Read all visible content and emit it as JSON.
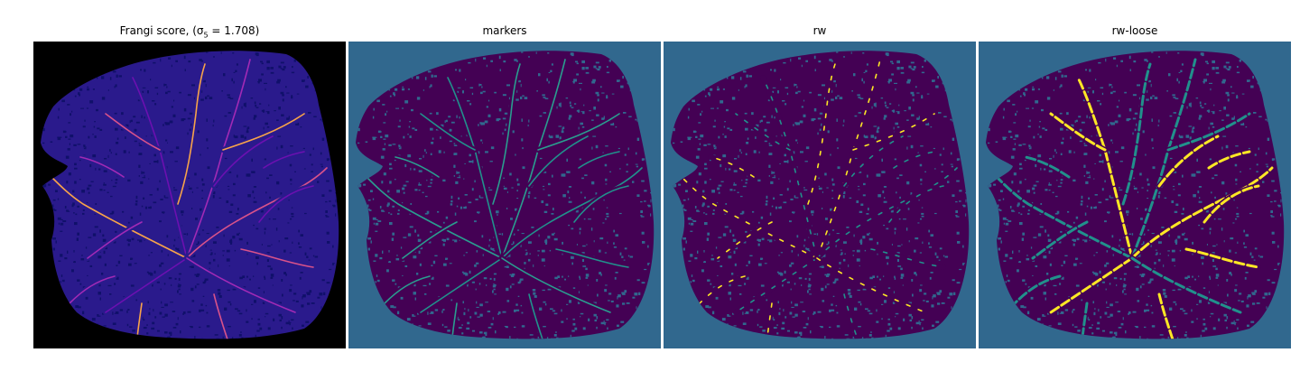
{
  "panels": [
    {
      "title": "Frangi score, (σ",
      "title_sub": "5",
      "title_tail": " = 1.708)",
      "background": "#000000",
      "tissue_fill": "#2a1a8c",
      "tissue_texture": "#10106a",
      "vessel_colors": [
        "#6b10b0",
        "#a12ab5",
        "#d8528a",
        "#f7a34a"
      ]
    },
    {
      "title": "markers",
      "background": "#31688e",
      "tissue_fill": "#440154",
      "tissue_texture": "#31688e",
      "vessel_colors": [
        "#21918c",
        "#2a9d8f"
      ]
    },
    {
      "title": "rw",
      "background": "#31688e",
      "tissue_fill": "#440154",
      "tissue_texture": "#31688e",
      "vessel_colors": [
        "#21918c",
        "#fde725"
      ]
    },
    {
      "title": "rw-loose",
      "background": "#31688e",
      "tissue_fill": "#440154",
      "tissue_texture": "#31688e",
      "vessel_colors": [
        "#fde725",
        "#21918c"
      ]
    }
  ]
}
